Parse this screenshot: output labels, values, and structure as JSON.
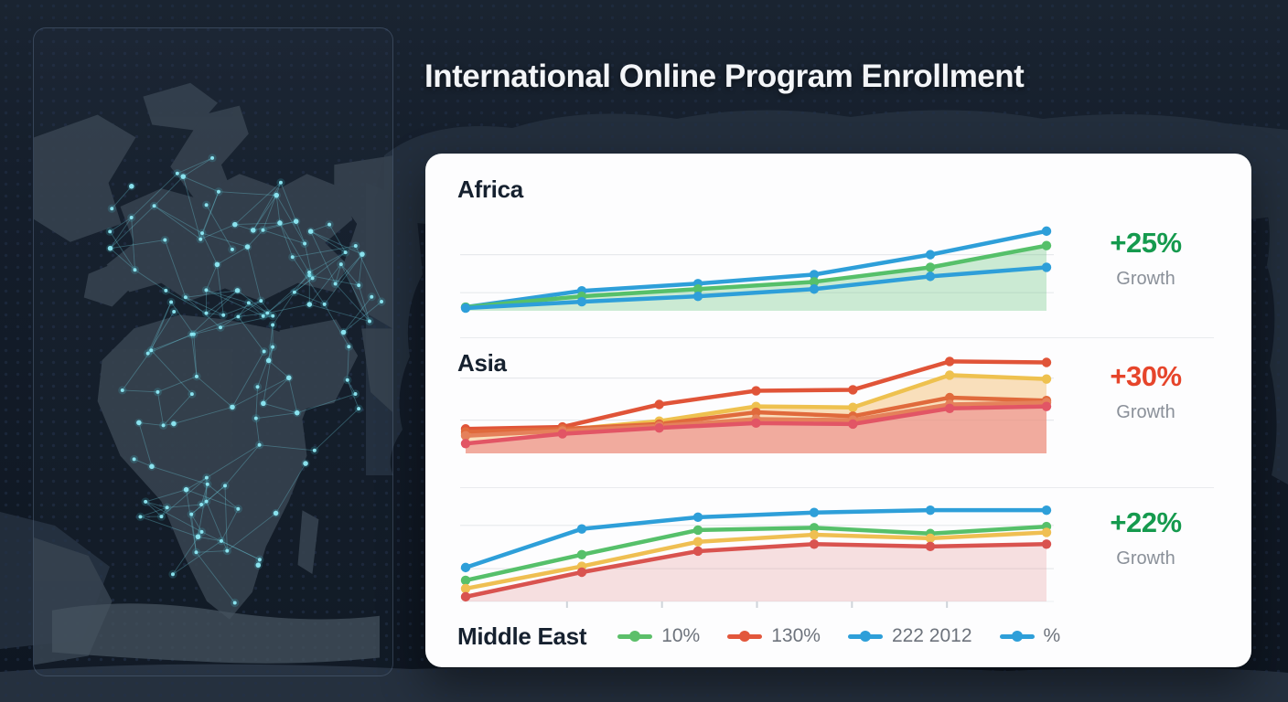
{
  "title": "International Online Program Enrollment",
  "theme": {
    "background": "#101927",
    "card_background": "#fdfdfe",
    "title_color": "#f3f5f8",
    "growth_green": "#159a4e",
    "growth_red": "#e6452b",
    "network_accent": "#7fdcea",
    "continent_color": "#36424f"
  },
  "card": {
    "sections": [
      {
        "label": "Africa",
        "growth": "+25%",
        "growth_caption": "Growth",
        "color": "#159a4e"
      },
      {
        "label": "Asia",
        "growth": "+30%",
        "growth_caption": "Growth",
        "color": "#e6452b"
      },
      {
        "label": "Middle East",
        "growth": "+22%",
        "growth_caption": "Growth",
        "color": "#159a4e"
      }
    ],
    "legend": [
      {
        "label": "10%",
        "color": "#5cbf6a"
      },
      {
        "label": "130%",
        "color": "#e2573c"
      },
      {
        "label": "222 2012",
        "color": "#2e9fd9"
      },
      {
        "label": "%",
        "color": "#2e9fd9"
      }
    ]
  },
  "chart_data": [
    {
      "type": "line",
      "region": "Africa",
      "gridlines": [
        62,
        20
      ],
      "ylim": [
        0,
        100
      ],
      "series": [
        {
          "name": "blue-upper",
          "color": "#2e9fd9",
          "values": [
            4,
            22,
            30,
            40,
            62,
            88
          ]
        },
        {
          "name": "green",
          "color": "#56c06a",
          "fill": "rgba(110,199,132,0.35)",
          "values": [
            4,
            16,
            24,
            32,
            48,
            72
          ]
        },
        {
          "name": "blue-lower",
          "color": "#2e9fd9",
          "values": [
            3,
            10,
            16,
            24,
            38,
            48
          ]
        }
      ]
    },
    {
      "type": "line",
      "region": "Asia",
      "gridlines": [
        77,
        34
      ],
      "ylim": [
        0,
        100
      ],
      "series": [
        {
          "name": "red",
          "color": "#e05438",
          "values": [
            25,
            27,
            50,
            64,
            65,
            94,
            93
          ]
        },
        {
          "name": "yellow",
          "color": "#eec14f",
          "fill": "rgba(243,186,106,0.45)",
          "values": [
            20,
            24,
            33,
            48,
            47,
            80,
            76
          ]
        },
        {
          "name": "orange",
          "color": "#e06a3c",
          "values": [
            22,
            25,
            30,
            42,
            38,
            57,
            54
          ]
        },
        {
          "name": "orange-2",
          "color": "#e5815a",
          "values": [
            18,
            23,
            28,
            35,
            34,
            50,
            52
          ]
        },
        {
          "name": "pink",
          "color": "#e25565",
          "fill": "rgba(233,120,130,0.5)",
          "values": [
            10,
            20,
            26,
            31,
            30,
            46,
            48
          ]
        }
      ]
    },
    {
      "type": "line",
      "region": "Middle East",
      "gridlines": [
        65,
        28
      ],
      "ticks": [
        0.18,
        0.34,
        0.5,
        0.66,
        0.82
      ],
      "ylim": [
        0,
        100
      ],
      "series": [
        {
          "name": "blue",
          "color": "#2e9fd9",
          "values": [
            29,
            62,
            72,
            76,
            78,
            78
          ]
        },
        {
          "name": "green",
          "color": "#56c06a",
          "values": [
            18,
            40,
            61,
            63,
            58,
            64
          ]
        },
        {
          "name": "yellow",
          "color": "#efbf52",
          "values": [
            11,
            30,
            51,
            57,
            54,
            59
          ]
        },
        {
          "name": "red",
          "color": "#d9534f",
          "fill": "rgba(224,120,120,0.22)",
          "values": [
            4,
            25,
            43,
            49,
            47,
            49
          ]
        }
      ]
    }
  ]
}
